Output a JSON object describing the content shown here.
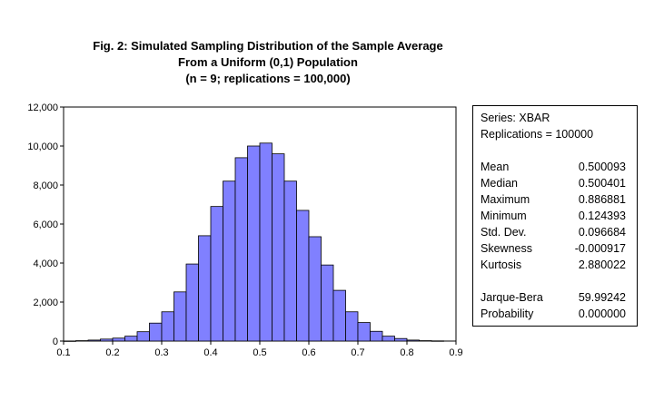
{
  "title": {
    "line1": "Fig. 2: Simulated Sampling Distribution of the Sample Average",
    "line2": "From a Uniform (0,1) Population",
    "line3": "(n = 9; replications = 100,000)"
  },
  "stats": {
    "series": "Series: XBAR",
    "replications": "Replications = 100000",
    "rows": [
      {
        "label": "Mean",
        "value": "0.500093"
      },
      {
        "label": "Median",
        "value": "0.500401"
      },
      {
        "label": "Maximum",
        "value": "0.886881"
      },
      {
        "label": "Minimum",
        "value": "0.124393"
      },
      {
        "label": "Std. Dev.",
        "value": "0.096684"
      },
      {
        "label": "Skewness",
        "value": "-0.000917"
      },
      {
        "label": "Kurtosis",
        "value": "2.880022"
      },
      {
        "label": "Jarque-Bera",
        "value": "59.99242"
      },
      {
        "label": "Probability",
        "value": "0.000000"
      }
    ]
  },
  "chart_data": {
    "type": "bar",
    "bin_width": 0.025,
    "bin_start": 0.1,
    "values": [
      5,
      20,
      50,
      100,
      150,
      250,
      480,
      920,
      1500,
      2520,
      3950,
      5400,
      6900,
      8200,
      9400,
      10000,
      10150,
      9600,
      8200,
      6700,
      5350,
      3900,
      2600,
      1500,
      950,
      500,
      250,
      130,
      50,
      20,
      10
    ],
    "xlim": [
      0.1,
      0.9
    ],
    "ylim": [
      0,
      12000
    ],
    "x_ticks": [
      "0.1",
      "0.2",
      "0.3",
      "0.4",
      "0.5",
      "0.6",
      "0.7",
      "0.8",
      "0.9"
    ],
    "y_ticks": [
      "0",
      "2,000",
      "4,000",
      "6,000",
      "8,000",
      "10,000",
      "12,000"
    ],
    "bar_color": "#8080ff",
    "edge_color": "#000000",
    "grid": false
  }
}
